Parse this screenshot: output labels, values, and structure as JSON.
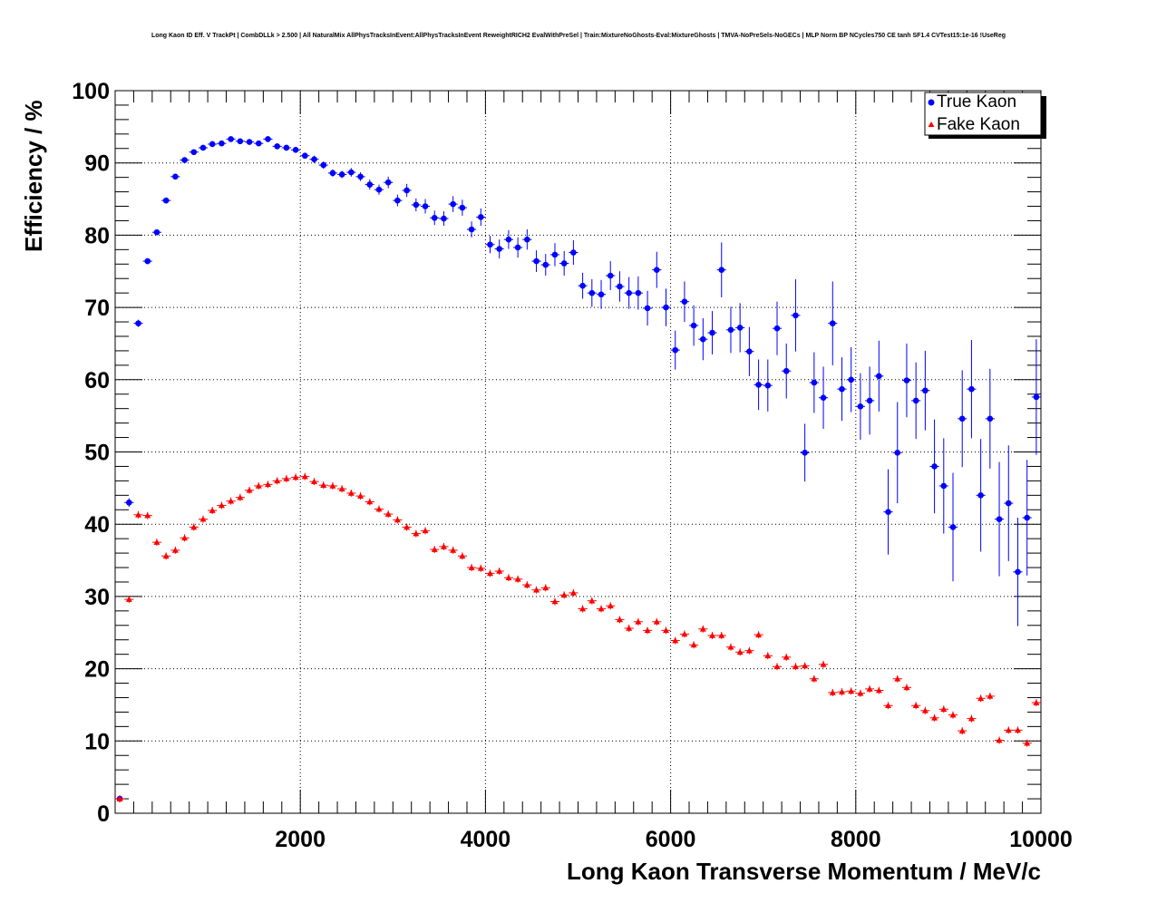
{
  "chart_data": {
    "type": "scatter",
    "title": "Long Kaon ID Eff. V TrackPt | CombDLLk > 2.500 | All NaturalMix AllPhysTracksInEvent:AllPhysTracksInEvent ReweightRICH2 EvalWithPreSel | Train:MixtureNoGhosts-Eval:MixtureGhosts | TMVA-NoPreSels-NoGECs | MLP Norm BP NCycles750 CE tanh SF1.4 CVTest15:1e-16 !UseReg",
    "xlabel": "Long Kaon Transverse Momentum / MeV/c",
    "ylabel": "Efficiency / %",
    "xlim": [
      0,
      10000
    ],
    "ylim": [
      0,
      100
    ],
    "x_ticks": [
      "2000",
      "4000",
      "6000",
      "8000",
      "10000"
    ],
    "y_ticks": [
      "0",
      "10",
      "20",
      "30",
      "40",
      "50",
      "60",
      "70",
      "80",
      "90",
      "100"
    ],
    "grid": true,
    "legend_position": "top-right",
    "series": [
      {
        "name": "True Kaon",
        "color": "#0000ff",
        "marker": "circle",
        "x": [
          50,
          150,
          250,
          350,
          450,
          550,
          650,
          750,
          850,
          950,
          1050,
          1150,
          1250,
          1350,
          1450,
          1550,
          1650,
          1750,
          1850,
          1950,
          2050,
          2150,
          2250,
          2350,
          2450,
          2550,
          2650,
          2750,
          2850,
          2950,
          3050,
          3150,
          3250,
          3350,
          3450,
          3550,
          3650,
          3750,
          3850,
          3950,
          4050,
          4150,
          4250,
          4350,
          4450,
          4550,
          4650,
          4750,
          4850,
          4950,
          5050,
          5150,
          5250,
          5350,
          5450,
          5550,
          5650,
          5750,
          5850,
          5950,
          6050,
          6150,
          6250,
          6350,
          6450,
          6550,
          6650,
          6750,
          6850,
          6950,
          7050,
          7150,
          7250,
          7350,
          7450,
          7550,
          7650,
          7750,
          7850,
          7950,
          8050,
          8150,
          8250,
          8350,
          8450,
          8550,
          8650,
          8750,
          8850,
          8950,
          9050,
          9150,
          9250,
          9350,
          9450,
          9550,
          9650,
          9750,
          9850,
          9950
        ],
        "y": [
          2.0,
          43.0,
          67.8,
          76.4,
          80.4,
          84.8,
          88.1,
          90.4,
          91.5,
          92.1,
          92.6,
          92.7,
          93.3,
          93.0,
          92.9,
          92.7,
          93.3,
          92.3,
          92.1,
          91.8,
          91.0,
          90.5,
          89.7,
          88.6,
          88.4,
          88.7,
          88.1,
          87.0,
          86.3,
          87.3,
          84.8,
          86.2,
          84.2,
          84.0,
          82.4,
          82.3,
          84.3,
          83.8,
          80.8,
          82.5,
          78.7,
          78.1,
          79.4,
          78.3,
          79.4,
          76.4,
          75.9,
          77.3,
          76.1,
          77.6,
          73.0,
          72.0,
          71.8,
          74.4,
          72.9,
          72.0,
          72.0,
          69.9,
          75.2,
          70.0,
          64.1,
          70.8,
          67.5,
          65.6,
          66.5,
          75.2,
          66.9,
          67.2,
          63.9,
          59.3,
          59.2,
          67.1,
          61.2,
          68.9,
          49.9,
          59.6,
          57.5,
          67.8,
          58.7,
          60.0,
          56.3,
          57.1,
          60.5,
          41.7,
          49.9,
          59.9,
          57.1,
          58.5,
          48.0,
          45.3,
          39.6,
          54.6,
          58.7,
          44.0,
          54.6,
          40.7,
          42.9,
          33.4,
          40.9,
          57.6
        ],
        "yerr": [
          0.2,
          0.6,
          0.5,
          0.4,
          0.4,
          0.4,
          0.3,
          0.3,
          0.3,
          0.3,
          0.3,
          0.3,
          0.3,
          0.3,
          0.3,
          0.3,
          0.4,
          0.4,
          0.4,
          0.4,
          0.4,
          0.5,
          0.5,
          0.5,
          0.5,
          0.6,
          0.6,
          0.7,
          0.7,
          0.8,
          0.8,
          0.9,
          0.9,
          1.0,
          1.0,
          1.0,
          1.1,
          1.1,
          1.1,
          1.2,
          1.2,
          1.3,
          1.3,
          1.4,
          1.4,
          1.5,
          1.5,
          1.6,
          1.7,
          1.7,
          1.8,
          1.9,
          2.0,
          2.0,
          2.1,
          2.2,
          2.3,
          2.4,
          2.5,
          2.6,
          2.7,
          2.8,
          2.8,
          2.9,
          3.0,
          3.8,
          3.2,
          3.4,
          3.4,
          3.5,
          3.6,
          3.7,
          3.8,
          5.0,
          4.0,
          4.2,
          4.3,
          5.8,
          4.4,
          4.5,
          4.6,
          4.7,
          4.9,
          5.9,
          7.0,
          5.1,
          5.3,
          5.5,
          6.5,
          6.6,
          7.5,
          6.7,
          6.8,
          7.8,
          6.9,
          7.9,
          8.0,
          7.5,
          8.0,
          8.0
        ]
      },
      {
        "name": "Fake Kaon",
        "color": "#ff0000",
        "marker": "triangle",
        "x": [
          50,
          150,
          250,
          350,
          450,
          550,
          650,
          750,
          850,
          950,
          1050,
          1150,
          1250,
          1350,
          1450,
          1550,
          1650,
          1750,
          1850,
          1950,
          2050,
          2150,
          2250,
          2350,
          2450,
          2550,
          2650,
          2750,
          2850,
          2950,
          3050,
          3150,
          3250,
          3350,
          3450,
          3550,
          3650,
          3750,
          3850,
          3950,
          4050,
          4150,
          4250,
          4350,
          4450,
          4550,
          4650,
          4750,
          4850,
          4950,
          5050,
          5150,
          5250,
          5350,
          5450,
          5550,
          5650,
          5750,
          5850,
          5950,
          6050,
          6150,
          6250,
          6350,
          6450,
          6550,
          6650,
          6750,
          6850,
          6950,
          7050,
          7150,
          7250,
          7350,
          7450,
          7550,
          7650,
          7750,
          7850,
          7950,
          8050,
          8150,
          8250,
          8350,
          8450,
          8550,
          8650,
          8750,
          8850,
          8950,
          9050,
          9150,
          9250,
          9350,
          9450,
          9550,
          9650,
          9750,
          9850,
          9950
        ],
        "y": [
          2.0,
          29.6,
          41.3,
          41.2,
          37.5,
          35.6,
          36.4,
          38.1,
          39.6,
          40.7,
          41.9,
          42.6,
          43.2,
          43.7,
          44.7,
          45.3,
          45.5,
          46.0,
          46.3,
          46.5,
          46.6,
          45.9,
          45.4,
          45.3,
          44.9,
          44.3,
          43.9,
          43.1,
          42.1,
          41.4,
          40.6,
          39.6,
          38.7,
          39.1,
          36.5,
          36.9,
          36.4,
          35.6,
          34.0,
          33.9,
          33.2,
          33.5,
          32.6,
          32.4,
          31.6,
          30.9,
          31.2,
          29.3,
          30.2,
          30.5,
          28.3,
          29.4,
          28.3,
          28.7,
          26.8,
          25.6,
          26.5,
          25.3,
          26.5,
          25.3,
          23.9,
          24.8,
          23.3,
          25.5,
          24.6,
          24.6,
          23.0,
          22.3,
          22.5,
          24.7,
          21.8,
          20.3,
          21.6,
          20.3,
          20.4,
          18.6,
          20.6,
          16.7,
          16.8,
          16.9,
          16.6,
          17.2,
          17.0,
          14.9,
          18.6,
          17.4,
          14.9,
          14.2,
          13.2,
          14.4,
          13.6,
          11.4,
          13.1,
          15.9,
          16.2,
          10.1,
          11.5,
          11.5,
          9.7,
          15.3
        ]
      }
    ]
  },
  "legend": {
    "items": [
      {
        "label": "True Kaon",
        "marker": "circle",
        "color": "#0000ff"
      },
      {
        "label": "Fake Kaon",
        "marker": "triangle",
        "color": "#ff0000"
      }
    ]
  }
}
